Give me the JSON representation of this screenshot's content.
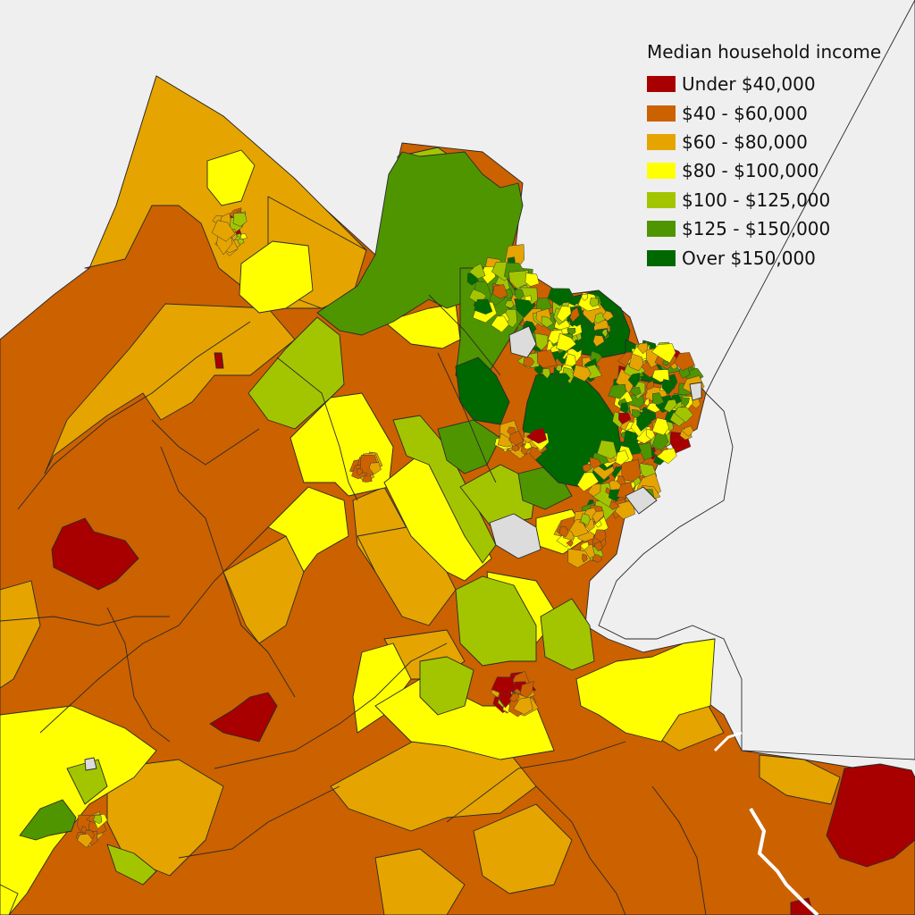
{
  "legend": {
    "title": "Median household income",
    "items": [
      {
        "label": "Under $40,000",
        "color": "#a80000"
      },
      {
        "label": "$40 - $60,000",
        "color": "#cc6100"
      },
      {
        "label": "$60 - $80,000",
        "color": "#e5a400"
      },
      {
        "label": "$80 - $100,000",
        "color": "#ffff00"
      },
      {
        "label": "$100 - $125,000",
        "color": "#a3c500"
      },
      {
        "label": "$125 - $150,000",
        "color": "#4f9500"
      },
      {
        "label": "Over $150,000",
        "color": "#006800"
      }
    ]
  },
  "colors": {
    "background": "#efefef",
    "water": "#ffffff",
    "no_data": "#dcdcdc",
    "boundary": "#2a2a2a"
  }
}
